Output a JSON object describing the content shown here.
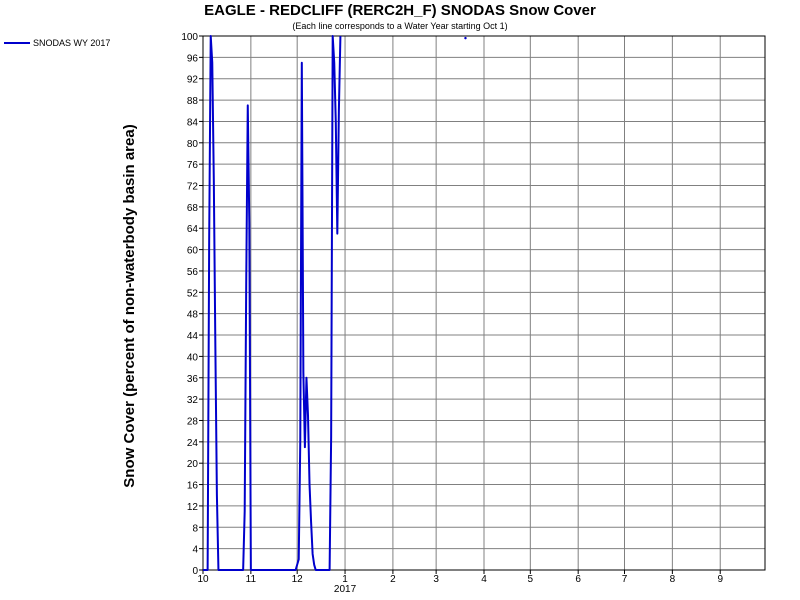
{
  "chart_data": {
    "type": "line",
    "title": "EAGLE - REDCLIFF (RERC2H_F) SNODAS Snow Cover",
    "subtitle": "(Each line corresponds to a Water Year starting Oct 1)",
    "ylabel": "Snow Cover (percent of non-waterbody basin area)",
    "xlabel": "",
    "ylim": [
      0,
      100
    ],
    "yticks": [
      0,
      4,
      8,
      12,
      16,
      20,
      24,
      28,
      32,
      36,
      40,
      44,
      48,
      52,
      56,
      60,
      64,
      68,
      72,
      76,
      80,
      84,
      88,
      92,
      96,
      100
    ],
    "xlim": [
      "2016-10-01",
      "2017-09-30"
    ],
    "xticks": [
      {
        "date": "2016-10-01",
        "label": "10"
      },
      {
        "date": "2016-11-01",
        "label": "11"
      },
      {
        "date": "2016-12-01",
        "label": "12"
      },
      {
        "date": "2017-01-01",
        "label": "1"
      },
      {
        "date": "2017-02-01",
        "label": "2"
      },
      {
        "date": "2017-03-01",
        "label": "3"
      },
      {
        "date": "2017-04-01",
        "label": "4"
      },
      {
        "date": "2017-05-01",
        "label": "5"
      },
      {
        "date": "2017-06-01",
        "label": "6"
      },
      {
        "date": "2017-07-01",
        "label": "7"
      },
      {
        "date": "2017-08-01",
        "label": "8"
      },
      {
        "date": "2017-09-01",
        "label": "9"
      }
    ],
    "year_label": "2017",
    "grid": true,
    "legend_position": "top-left",
    "series": [
      {
        "name": "SNODAS WY 2017",
        "color": "#0000cc",
        "points": [
          [
            "2016-10-01",
            0
          ],
          [
            "2016-10-04",
            0
          ],
          [
            "2016-10-05",
            62
          ],
          [
            "2016-10-06",
            100
          ],
          [
            "2016-10-07",
            95
          ],
          [
            "2016-10-08",
            73
          ],
          [
            "2016-10-09",
            42
          ],
          [
            "2016-10-10",
            14
          ],
          [
            "2016-10-11",
            0
          ],
          [
            "2016-10-18",
            0
          ],
          [
            "2016-10-19",
            0
          ],
          [
            "2016-10-20",
            0
          ],
          [
            "2016-10-21",
            0
          ],
          [
            "2016-10-22",
            0
          ],
          [
            "2016-10-23",
            0
          ],
          [
            "2016-10-24",
            0
          ],
          [
            "2016-10-25",
            0
          ],
          [
            "2016-10-26",
            0
          ],
          [
            "2016-10-27",
            0
          ],
          [
            "2016-10-28",
            11
          ],
          [
            "2016-10-29",
            54
          ],
          [
            "2016-10-30",
            87
          ],
          [
            "2016-10-31",
            65
          ],
          [
            "2016-11-01",
            0
          ],
          [
            "2016-11-10",
            0
          ],
          [
            "2016-11-11",
            0
          ],
          [
            "2016-11-12",
            0
          ],
          [
            "2016-11-13",
            0
          ],
          [
            "2016-11-14",
            0
          ],
          [
            "2016-11-15",
            0
          ],
          [
            "2016-11-16",
            0
          ],
          [
            "2016-11-17",
            0
          ],
          [
            "2016-11-18",
            0
          ],
          [
            "2016-11-19",
            0
          ],
          [
            "2016-11-20",
            0
          ],
          [
            "2016-11-21",
            0
          ],
          [
            "2016-11-22",
            0
          ],
          [
            "2016-11-23",
            0
          ],
          [
            "2016-11-24",
            0
          ],
          [
            "2016-11-25",
            0
          ],
          [
            "2016-11-26",
            0
          ],
          [
            "2016-11-27",
            0
          ],
          [
            "2016-11-28",
            0
          ],
          [
            "2016-11-29",
            0
          ],
          [
            "2016-11-30",
            0
          ],
          [
            "2016-12-01",
            1
          ],
          [
            "2016-12-02",
            2
          ],
          [
            "2016-12-03",
            24
          ],
          [
            "2016-12-04",
            95
          ],
          [
            "2016-12-05",
            37
          ],
          [
            "2016-12-06",
            23
          ],
          [
            "2016-12-07",
            36
          ],
          [
            "2016-12-08",
            29
          ],
          [
            "2016-12-09",
            16
          ],
          [
            "2016-12-10",
            9
          ],
          [
            "2016-12-11",
            3
          ],
          [
            "2016-12-12",
            1
          ],
          [
            "2016-12-13",
            0
          ],
          [
            "2016-12-14",
            0
          ],
          [
            "2016-12-15",
            0
          ],
          [
            "2016-12-16",
            0
          ],
          [
            "2016-12-17",
            0
          ],
          [
            "2016-12-18",
            0
          ],
          [
            "2016-12-19",
            0
          ],
          [
            "2016-12-20",
            0
          ],
          [
            "2016-12-21",
            0
          ],
          [
            "2016-12-22",
            0
          ],
          [
            "2016-12-23",
            25
          ],
          [
            "2016-12-24",
            100
          ],
          [
            "2016-12-25",
            95
          ],
          [
            "2016-12-26",
            84
          ],
          [
            "2016-12-27",
            63
          ],
          [
            "2016-12-28",
            86
          ],
          [
            "2016-12-29",
            100
          ]
        ]
      }
    ],
    "annotation": {
      "date": "2017-03-20",
      "value": 99.6
    }
  }
}
